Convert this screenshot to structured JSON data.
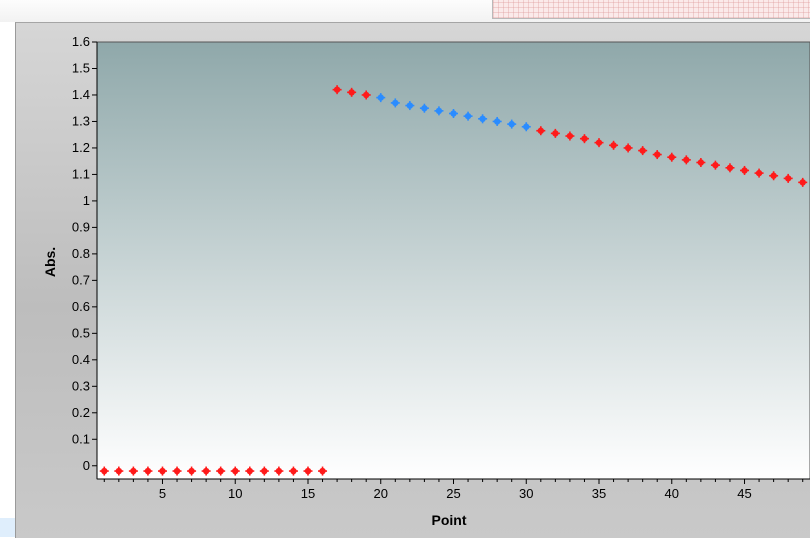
{
  "chart_data": {
    "type": "scatter",
    "title": "",
    "xlabel": "Point",
    "ylabel": "Abs.",
    "xlim": [
      0.5,
      49.5
    ],
    "ylim": [
      -0.05,
      1.6
    ],
    "x_ticks": [
      5,
      10,
      15,
      20,
      25,
      30,
      35,
      40,
      45
    ],
    "y_ticks": [
      0,
      0.1,
      0.2,
      0.3,
      0.4,
      0.5,
      0.6,
      0.7,
      0.8,
      0.9,
      1,
      1.1,
      1.2,
      1.3,
      1.4,
      1.5,
      1.6
    ],
    "y_tick_labels": [
      "0",
      "0.1",
      "0.2",
      "0.3",
      "0.4",
      "0.5",
      "0.6",
      "0.7",
      "0.8",
      "0.9",
      "1",
      "1.1",
      "1.2",
      "1.3",
      "1.4",
      "1.5",
      "1.6"
    ],
    "grid": false,
    "colors": {
      "red_points": "#ff1a1a",
      "blue_points": "#2b8cff",
      "plot_top": "#8fa8aa",
      "plot_bottom": "#ffffff"
    },
    "series": [
      {
        "color": "red",
        "points": [
          [
            1,
            -0.02
          ],
          [
            2,
            -0.02
          ],
          [
            3,
            -0.02
          ],
          [
            4,
            -0.02
          ],
          [
            5,
            -0.02
          ],
          [
            6,
            -0.02
          ],
          [
            7,
            -0.02
          ],
          [
            8,
            -0.02
          ],
          [
            9,
            -0.02
          ],
          [
            10,
            -0.02
          ],
          [
            11,
            -0.02
          ],
          [
            12,
            -0.02
          ],
          [
            13,
            -0.02
          ],
          [
            14,
            -0.02
          ],
          [
            15,
            -0.02
          ],
          [
            16,
            -0.02
          ],
          [
            17,
            1.42
          ],
          [
            18,
            1.41
          ],
          [
            19,
            1.4
          ]
        ]
      },
      {
        "color": "blue",
        "points": [
          [
            20,
            1.39
          ],
          [
            21,
            1.37
          ],
          [
            22,
            1.36
          ],
          [
            23,
            1.35
          ],
          [
            24,
            1.34
          ],
          [
            25,
            1.33
          ],
          [
            26,
            1.32
          ],
          [
            27,
            1.31
          ],
          [
            28,
            1.3
          ],
          [
            29,
            1.29
          ],
          [
            30,
            1.28
          ]
        ]
      },
      {
        "color": "red",
        "points": [
          [
            31,
            1.265
          ],
          [
            32,
            1.255
          ],
          [
            33,
            1.245
          ],
          [
            34,
            1.235
          ],
          [
            35,
            1.22
          ],
          [
            36,
            1.21
          ],
          [
            37,
            1.2
          ],
          [
            38,
            1.19
          ],
          [
            39,
            1.175
          ],
          [
            40,
            1.165
          ],
          [
            41,
            1.155
          ],
          [
            42,
            1.145
          ],
          [
            43,
            1.135
          ],
          [
            44,
            1.125
          ],
          [
            45,
            1.115
          ],
          [
            46,
            1.105
          ],
          [
            47,
            1.095
          ],
          [
            48,
            1.085
          ],
          [
            49,
            1.07
          ]
        ]
      }
    ]
  }
}
